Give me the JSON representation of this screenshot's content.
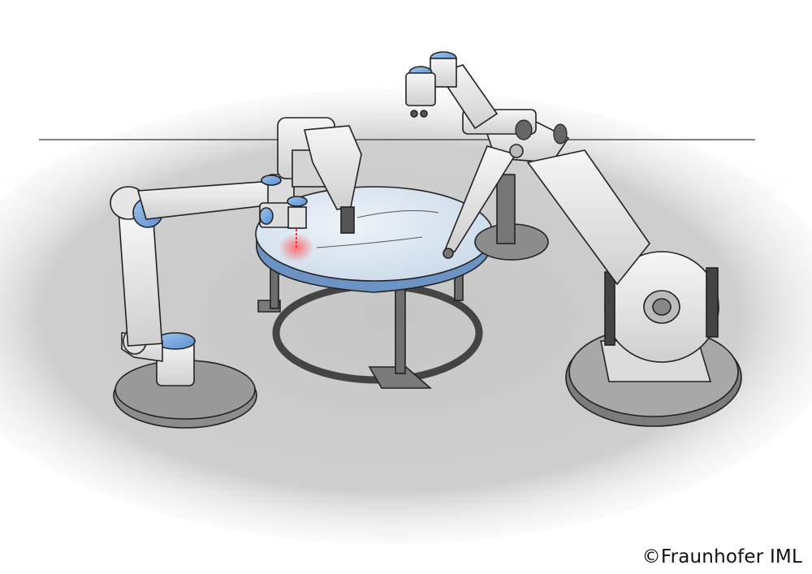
{
  "image": {
    "credit_text": "©Fraunhofer IML",
    "colors": {
      "floor": "#c9c9c9",
      "wall": "#d3d9df",
      "robot_body": "#e8e8e8",
      "joint_accent": "#78a9e0",
      "base_dark": "#8a8a8a",
      "table_top": "#dde8f2",
      "laser": "#ff3030"
    }
  }
}
